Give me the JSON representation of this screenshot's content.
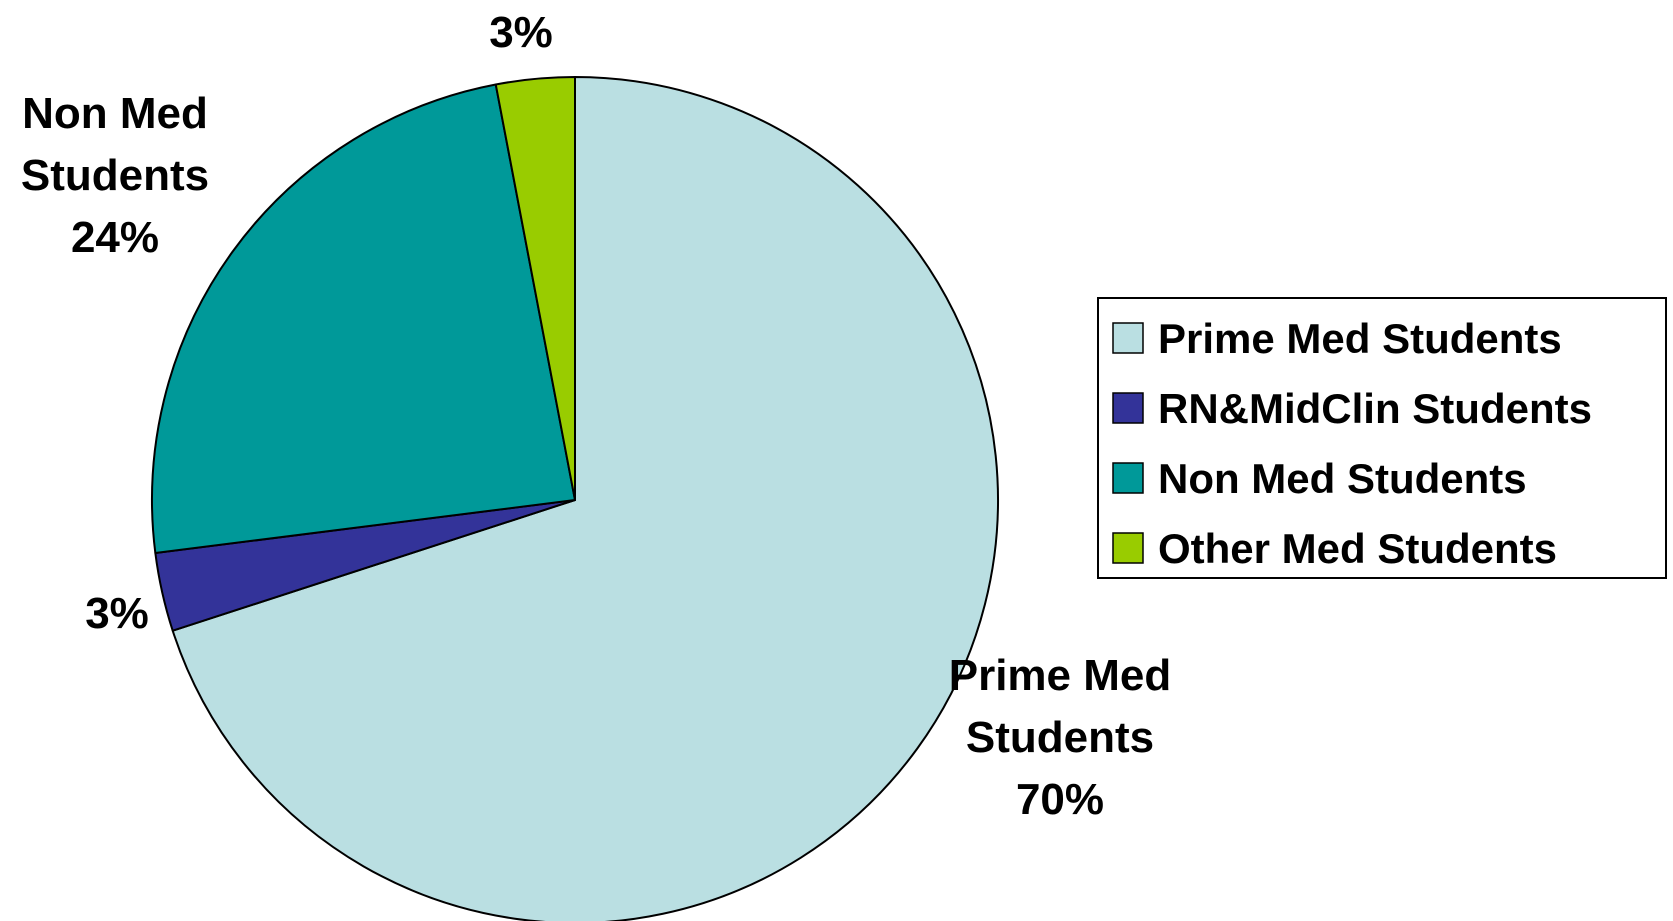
{
  "chart_data": {
    "type": "pie",
    "categories": [
      "Prime Med Students",
      "RN&MidClin Students",
      "Non Med Students",
      "Other Med Students"
    ],
    "values": [
      70,
      3,
      24,
      3
    ],
    "colors": [
      "#BADFE2",
      "#333399",
      "#009999",
      "#99CC00"
    ],
    "data_labels": [
      [
        "Prime Med",
        "Students",
        "70%"
      ],
      [
        "3%"
      ],
      [
        "Non Med",
        "Students",
        "24%"
      ],
      [
        "3%"
      ]
    ],
    "start_angle_deg": 0,
    "direction": "clockwise",
    "legend": {
      "position": "right",
      "entries": [
        "Prime Med Students",
        "RN&MidClin Students",
        "Non Med Students",
        "Other Med Students"
      ]
    }
  }
}
